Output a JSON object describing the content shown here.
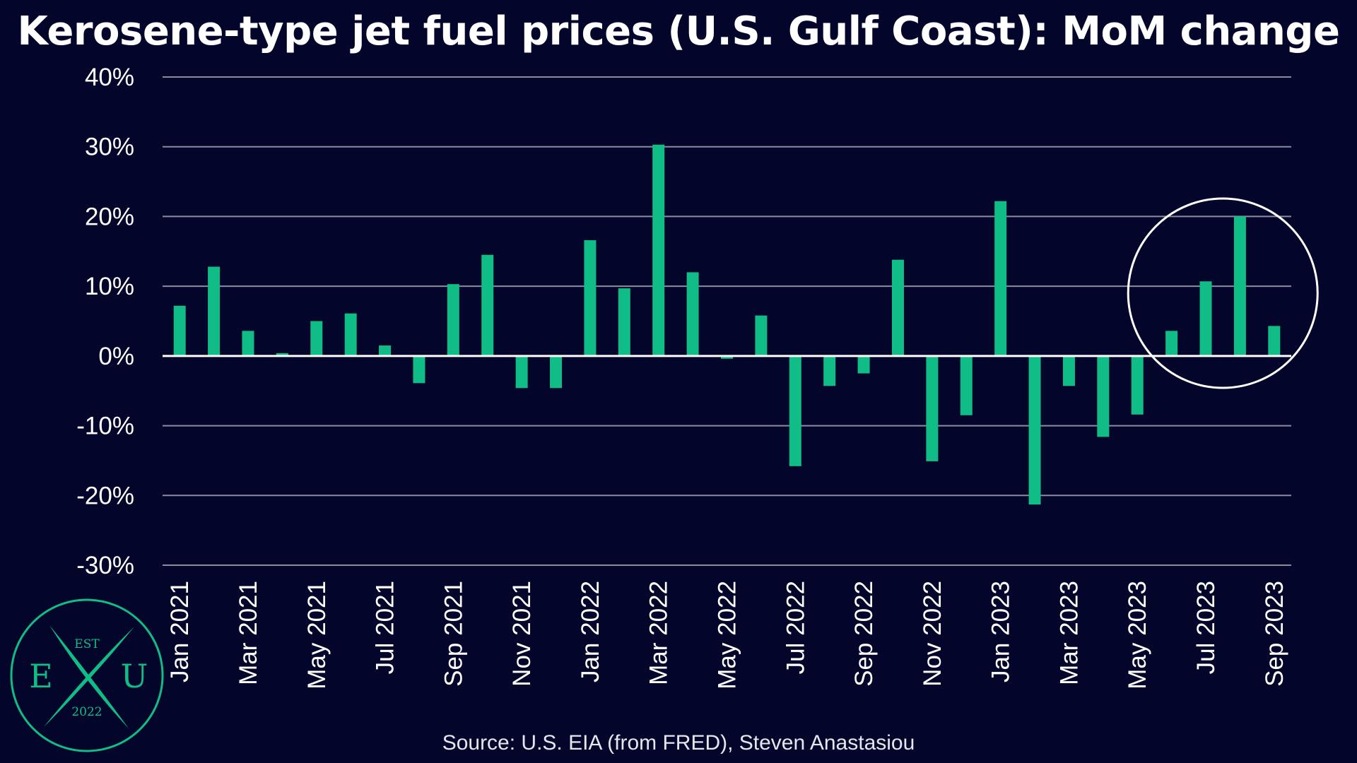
{
  "title": "Kerosene-type jet fuel prices (U.S. Gulf Coast): MoM change",
  "source": "Source: U.S. EIA (from FRED), Steven Anastasiou",
  "colors": {
    "background": "#03052b",
    "bar": "#10bd86",
    "grid": "#8a8c9e",
    "text": "#ffffff",
    "logo": "#10bd86"
  },
  "logo": {
    "top": "EST",
    "left": "E",
    "center": "X",
    "right": "U",
    "bottom": "2022"
  },
  "annotation": {
    "type": "circle",
    "highlight": [
      "Jun 2023",
      "Jul 2023",
      "Aug 2023",
      "Sep 2023"
    ]
  },
  "chart_data": {
    "type": "bar",
    "title": "Kerosene-type jet fuel prices (U.S. Gulf Coast): MoM change",
    "categories": [
      "Jan 2021",
      "Feb 2021",
      "Mar 2021",
      "Apr 2021",
      "May 2021",
      "Jun 2021",
      "Jul 2021",
      "Aug 2021",
      "Sep 2021",
      "Oct 2021",
      "Nov 2021",
      "Dec 2021",
      "Jan 2022",
      "Feb 2022",
      "Mar 2022",
      "Apr 2022",
      "May 2022",
      "Jun 2022",
      "Jul 2022",
      "Aug 2022",
      "Sep 2022",
      "Oct 2022",
      "Nov 2022",
      "Dec 2022",
      "Jan 2023",
      "Feb 2023",
      "Mar 2023",
      "Apr 2023",
      "May 2023",
      "Jun 2023",
      "Jul 2023",
      "Aug 2023",
      "Sep 2023"
    ],
    "tick_labels": [
      "Jan 2021",
      "Mar 2021",
      "May 2021",
      "Jul 2021",
      "Sep 2021",
      "Nov 2021",
      "Jan 2022",
      "Mar 2022",
      "May 2022",
      "Jul 2022",
      "Sep 2022",
      "Nov 2022",
      "Jan 2023",
      "Mar 2023",
      "May 2023",
      "Jul 2023",
      "Sep 2023"
    ],
    "series": [
      {
        "values": [
          7.2,
          12.8,
          3.6,
          0.4,
          5.0,
          6.1,
          1.5,
          -3.9,
          10.3,
          14.5,
          -4.6,
          -4.6,
          16.6,
          9.7,
          30.3,
          12.0,
          -0.4,
          5.8,
          -15.8,
          -4.3,
          -2.5,
          13.8,
          -15.1,
          -8.5,
          22.2,
          -21.3,
          -4.3,
          -11.6,
          -8.4,
          3.6,
          10.7,
          20.0,
          4.3
        ]
      }
    ],
    "ylim": [
      -30,
      40
    ],
    "yticks": [
      "-30%",
      "-20%",
      "-10%",
      "0%",
      "10%",
      "20%",
      "30%",
      "40%"
    ],
    "ytick_values": [
      -30,
      -20,
      -10,
      0,
      10,
      20,
      30,
      40
    ],
    "xlabel": "",
    "ylabel": "",
    "grid": true,
    "legend": "none"
  }
}
